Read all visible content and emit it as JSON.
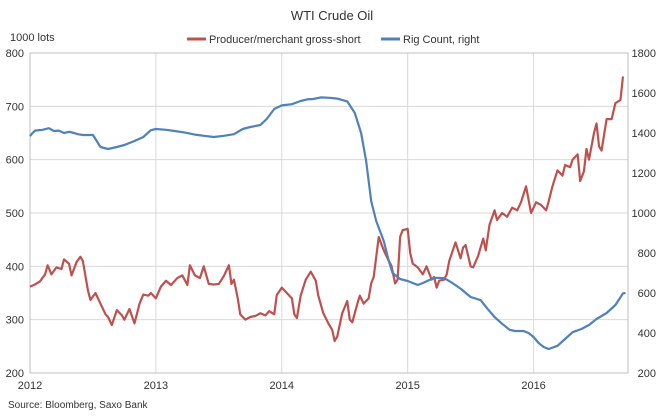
{
  "chart_data": {
    "type": "line",
    "title": "WTI Crude Oil",
    "y_left_label": "1000 lots",
    "y_right_label": "",
    "source": "Source: Bloomberg, Saxo Bank",
    "legend_position": "top",
    "grid": true,
    "x_range": [
      2012.0,
      2016.75
    ],
    "x_ticks": [
      "2012",
      "2013",
      "2014",
      "2015",
      "2016"
    ],
    "y_left_range": [
      200,
      800
    ],
    "y_left_ticks": [
      "200",
      "300",
      "400",
      "500",
      "600",
      "700",
      "800"
    ],
    "y_right_range": [
      200,
      1800
    ],
    "y_right_ticks": [
      "200",
      "400",
      "600",
      "800",
      "1000",
      "1200",
      "1400",
      "1600",
      "1800"
    ],
    "series": [
      {
        "name": "Producer/merchant gross-short",
        "axis": "left",
        "color": "#c0504d",
        "points": [
          [
            2012.0,
            362
          ],
          [
            2012.04,
            366
          ],
          [
            2012.08,
            372
          ],
          [
            2012.12,
            385
          ],
          [
            2012.14,
            402
          ],
          [
            2012.17,
            385
          ],
          [
            2012.21,
            398
          ],
          [
            2012.25,
            395
          ],
          [
            2012.27,
            413
          ],
          [
            2012.31,
            405
          ],
          [
            2012.33,
            383
          ],
          [
            2012.37,
            408
          ],
          [
            2012.4,
            418
          ],
          [
            2012.42,
            410
          ],
          [
            2012.46,
            355
          ],
          [
            2012.48,
            337
          ],
          [
            2012.52,
            350
          ],
          [
            2012.56,
            330
          ],
          [
            2012.6,
            310
          ],
          [
            2012.62,
            305
          ],
          [
            2012.65,
            290
          ],
          [
            2012.69,
            318
          ],
          [
            2012.73,
            308
          ],
          [
            2012.75,
            300
          ],
          [
            2012.79,
            320
          ],
          [
            2012.83,
            293
          ],
          [
            2012.87,
            330
          ],
          [
            2012.9,
            347
          ],
          [
            2012.94,
            345
          ],
          [
            2012.96,
            350
          ],
          [
            2013.0,
            340
          ],
          [
            2013.04,
            362
          ],
          [
            2013.08,
            373
          ],
          [
            2013.12,
            365
          ],
          [
            2013.17,
            378
          ],
          [
            2013.21,
            383
          ],
          [
            2013.25,
            365
          ],
          [
            2013.27,
            402
          ],
          [
            2013.31,
            383
          ],
          [
            2013.35,
            378
          ],
          [
            2013.38,
            400
          ],
          [
            2013.42,
            367
          ],
          [
            2013.46,
            366
          ],
          [
            2013.5,
            367
          ],
          [
            2013.54,
            382
          ],
          [
            2013.58,
            402
          ],
          [
            2013.6,
            367
          ],
          [
            2013.62,
            375
          ],
          [
            2013.65,
            340
          ],
          [
            2013.67,
            310
          ],
          [
            2013.71,
            300
          ],
          [
            2013.75,
            305
          ],
          [
            2013.79,
            307
          ],
          [
            2013.83,
            312
          ],
          [
            2013.87,
            308
          ],
          [
            2013.9,
            316
          ],
          [
            2013.94,
            310
          ],
          [
            2013.96,
            346
          ],
          [
            2014.0,
            360
          ],
          [
            2014.04,
            350
          ],
          [
            2014.08,
            340
          ],
          [
            2014.1,
            310
          ],
          [
            2014.12,
            303
          ],
          [
            2014.15,
            345
          ],
          [
            2014.19,
            375
          ],
          [
            2014.23,
            390
          ],
          [
            2014.27,
            373
          ],
          [
            2014.29,
            345
          ],
          [
            2014.33,
            312
          ],
          [
            2014.37,
            293
          ],
          [
            2014.4,
            281
          ],
          [
            2014.42,
            260
          ],
          [
            2014.44,
            268
          ],
          [
            2014.48,
            312
          ],
          [
            2014.52,
            335
          ],
          [
            2014.54,
            300
          ],
          [
            2014.56,
            295
          ],
          [
            2014.6,
            330
          ],
          [
            2014.62,
            345
          ],
          [
            2014.65,
            330
          ],
          [
            2014.69,
            340
          ],
          [
            2014.71,
            368
          ],
          [
            2014.73,
            380
          ],
          [
            2014.77,
            455
          ],
          [
            2014.81,
            430
          ],
          [
            2014.85,
            410
          ],
          [
            2014.87,
            402
          ],
          [
            2014.9,
            368
          ],
          [
            2014.92,
            375
          ],
          [
            2014.94,
            455
          ],
          [
            2014.96,
            468
          ],
          [
            2015.0,
            470
          ],
          [
            2015.02,
            425
          ],
          [
            2015.04,
            405
          ],
          [
            2015.08,
            398
          ],
          [
            2015.12,
            385
          ],
          [
            2015.15,
            400
          ],
          [
            2015.19,
            375
          ],
          [
            2015.21,
            380
          ],
          [
            2015.23,
            360
          ],
          [
            2015.25,
            373
          ],
          [
            2015.29,
            375
          ],
          [
            2015.31,
            385
          ],
          [
            2015.33,
            410
          ],
          [
            2015.38,
            445
          ],
          [
            2015.42,
            415
          ],
          [
            2015.44,
            435
          ],
          [
            2015.46,
            440
          ],
          [
            2015.5,
            400
          ],
          [
            2015.52,
            398
          ],
          [
            2015.56,
            420
          ],
          [
            2015.6,
            452
          ],
          [
            2015.62,
            430
          ],
          [
            2015.65,
            478
          ],
          [
            2015.69,
            505
          ],
          [
            2015.71,
            487
          ],
          [
            2015.75,
            500
          ],
          [
            2015.79,
            493
          ],
          [
            2015.83,
            510
          ],
          [
            2015.87,
            505
          ],
          [
            2015.9,
            520
          ],
          [
            2015.94,
            550
          ],
          [
            2015.98,
            500
          ],
          [
            2016.02,
            520
          ],
          [
            2016.06,
            515
          ],
          [
            2016.1,
            505
          ],
          [
            2016.12,
            522
          ],
          [
            2016.15,
            550
          ],
          [
            2016.19,
            580
          ],
          [
            2016.23,
            570
          ],
          [
            2016.25,
            590
          ],
          [
            2016.29,
            586
          ],
          [
            2016.31,
            600
          ],
          [
            2016.35,
            610
          ],
          [
            2016.37,
            560
          ],
          [
            2016.4,
            578
          ],
          [
            2016.42,
            620
          ],
          [
            2016.44,
            600
          ],
          [
            2016.48,
            650
          ],
          [
            2016.5,
            668
          ],
          [
            2016.52,
            625
          ],
          [
            2016.54,
            617
          ],
          [
            2016.58,
            676
          ],
          [
            2016.62,
            676
          ],
          [
            2016.65,
            706
          ],
          [
            2016.69,
            712
          ],
          [
            2016.71,
            756
          ]
        ]
      },
      {
        "name": "Rig Count, right",
        "axis": "right",
        "color": "#4f81bd",
        "points": [
          [
            2012.0,
            1384
          ],
          [
            2012.02,
            1400
          ],
          [
            2012.04,
            1412
          ],
          [
            2012.1,
            1416
          ],
          [
            2012.15,
            1424
          ],
          [
            2012.19,
            1410
          ],
          [
            2012.23,
            1412
          ],
          [
            2012.27,
            1400
          ],
          [
            2012.31,
            1406
          ],
          [
            2012.35,
            1400
          ],
          [
            2012.38,
            1394
          ],
          [
            2012.42,
            1390
          ],
          [
            2012.5,
            1390
          ],
          [
            2012.56,
            1330
          ],
          [
            2012.62,
            1320
          ],
          [
            2012.69,
            1330
          ],
          [
            2012.75,
            1340
          ],
          [
            2012.83,
            1360
          ],
          [
            2012.9,
            1380
          ],
          [
            2012.96,
            1414
          ],
          [
            2013.0,
            1420
          ],
          [
            2013.08,
            1416
          ],
          [
            2013.15,
            1410
          ],
          [
            2013.23,
            1402
          ],
          [
            2013.31,
            1392
          ],
          [
            2013.38,
            1386
          ],
          [
            2013.46,
            1380
          ],
          [
            2013.54,
            1386
          ],
          [
            2013.62,
            1394
          ],
          [
            2013.69,
            1420
          ],
          [
            2013.75,
            1430
          ],
          [
            2013.83,
            1440
          ],
          [
            2013.88,
            1470
          ],
          [
            2013.94,
            1520
          ],
          [
            2014.0,
            1538
          ],
          [
            2014.08,
            1544
          ],
          [
            2014.15,
            1560
          ],
          [
            2014.2,
            1568
          ],
          [
            2014.25,
            1570
          ],
          [
            2014.31,
            1578
          ],
          [
            2014.38,
            1576
          ],
          [
            2014.44,
            1572
          ],
          [
            2014.52,
            1558
          ],
          [
            2014.58,
            1500
          ],
          [
            2014.63,
            1400
          ],
          [
            2014.67,
            1260
          ],
          [
            2014.71,
            1060
          ],
          [
            2014.75,
            960
          ],
          [
            2014.81,
            860
          ],
          [
            2014.85,
            760
          ],
          [
            2014.88,
            700
          ],
          [
            2014.94,
            670
          ],
          [
            2015.0,
            660
          ],
          [
            2015.08,
            640
          ],
          [
            2015.12,
            650
          ],
          [
            2015.19,
            670
          ],
          [
            2015.23,
            676
          ],
          [
            2015.29,
            674
          ],
          [
            2015.35,
            652
          ],
          [
            2015.42,
            622
          ],
          [
            2015.5,
            580
          ],
          [
            2015.58,
            564
          ],
          [
            2015.63,
            524
          ],
          [
            2015.69,
            480
          ],
          [
            2015.75,
            446
          ],
          [
            2015.81,
            416
          ],
          [
            2015.85,
            410
          ],
          [
            2015.92,
            410
          ],
          [
            2015.96,
            400
          ],
          [
            2016.0,
            380
          ],
          [
            2016.04,
            350
          ],
          [
            2016.08,
            330
          ],
          [
            2016.12,
            320
          ],
          [
            2016.19,
            336
          ],
          [
            2016.25,
            370
          ],
          [
            2016.31,
            404
          ],
          [
            2016.38,
            420
          ],
          [
            2016.44,
            440
          ],
          [
            2016.5,
            470
          ],
          [
            2016.58,
            500
          ],
          [
            2016.65,
            540
          ],
          [
            2016.71,
            598
          ],
          [
            2016.73,
            600
          ]
        ]
      }
    ]
  }
}
